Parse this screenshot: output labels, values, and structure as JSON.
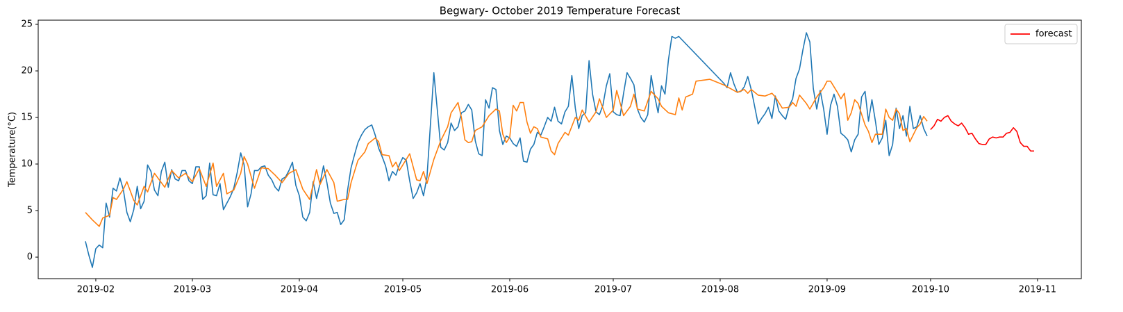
{
  "chart_data": {
    "type": "line",
    "title": "Begwary- October 2019 Temperature Forecast",
    "ylabel": "Temperature(°C)",
    "xlim": [
      15.3,
      317.7
    ],
    "xticks": [
      {
        "value": 32,
        "label": "2019-02"
      },
      {
        "value": 60,
        "label": "2019-03"
      },
      {
        "value": 91,
        "label": "2019-04"
      },
      {
        "value": 121,
        "label": "2019-05"
      },
      {
        "value": 152,
        "label": "2019-06"
      },
      {
        "value": 182,
        "label": "2019-07"
      },
      {
        "value": 213,
        "label": "2019-08"
      },
      {
        "value": 244,
        "label": "2019-09"
      },
      {
        "value": 274,
        "label": "2019-10"
      },
      {
        "value": 305,
        "label": "2019-11"
      }
    ],
    "ylim": [
      -2.31,
      25.45
    ],
    "yticks": [
      0,
      5,
      10,
      15,
      20,
      25
    ],
    "grid": false,
    "legend": "upper right",
    "series": [
      {
        "color": "#1f77b4",
        "x": [
          29,
          30,
          31,
          32,
          33,
          34,
          35,
          36,
          37,
          38,
          39,
          40,
          41,
          42,
          43,
          44,
          45,
          46,
          47,
          48,
          49,
          50,
          51,
          52,
          53,
          54,
          55,
          56,
          57,
          58,
          59,
          60,
          61,
          62,
          63,
          64,
          65,
          66,
          67,
          68,
          69,
          70,
          71,
          72,
          73,
          74,
          75,
          76,
          77,
          78,
          79,
          80,
          81,
          82,
          83,
          84,
          85,
          86,
          87,
          88,
          89,
          90,
          91,
          92,
          93,
          94,
          95,
          96,
          97,
          98,
          99,
          100,
          101,
          102,
          103,
          104,
          105,
          106,
          107,
          108,
          109,
          110,
          111,
          112,
          113,
          114,
          115,
          116,
          117,
          118,
          119,
          120,
          121,
          122,
          123,
          124,
          125,
          126,
          127,
          128,
          130,
          131,
          132,
          133,
          134,
          135,
          136,
          137,
          138,
          139,
          140,
          141,
          142,
          143,
          144,
          145,
          146,
          147,
          148,
          149,
          150,
          151,
          152,
          153,
          154,
          155,
          156,
          157,
          158,
          159,
          160,
          161,
          162,
          163,
          164,
          165,
          166,
          167,
          168,
          169,
          170,
          171,
          172,
          173,
          174,
          175,
          176,
          177,
          178,
          179,
          180,
          181,
          182,
          183,
          184,
          185,
          186,
          187,
          188,
          189,
          190,
          191,
          192,
          193,
          194,
          195,
          196,
          197,
          198,
          199,
          200,
          201,
          214,
          215,
          216,
          217,
          218,
          219,
          220,
          221,
          222,
          223,
          224,
          225,
          226,
          227,
          228,
          229,
          230,
          231,
          232,
          233,
          234,
          235,
          236,
          237,
          238,
          239,
          240,
          241,
          242,
          243,
          244,
          245,
          246,
          247,
          248,
          249,
          250,
          251,
          252,
          253,
          254,
          255,
          256,
          257,
          258,
          259,
          260,
          261,
          262,
          263,
          264,
          265,
          266,
          267,
          268,
          269,
          270,
          271,
          272,
          273
        ],
        "values": [
          1.7,
          0.2,
          -1.1,
          0.9,
          1.3,
          1.0,
          5.8,
          4.3,
          7.4,
          7.1,
          8.5,
          7.2,
          4.8,
          3.8,
          5.1,
          7.6,
          5.2,
          6.0,
          9.9,
          9.2,
          7.2,
          6.6,
          9.2,
          10.2,
          7.5,
          9.4,
          8.4,
          8.2,
          9.3,
          9.3,
          8.2,
          7.9,
          9.7,
          9.7,
          6.2,
          6.6,
          10.1,
          6.7,
          6.6,
          7.9,
          5.1,
          5.8,
          6.5,
          7.4,
          9.1,
          11.2,
          9.9,
          5.4,
          6.8,
          9.3,
          9.3,
          9.7,
          9.8,
          8.8,
          8.3,
          7.5,
          7.1,
          8.4,
          8.6,
          9.3,
          10.2,
          7.7,
          6.6,
          4.3,
          3.9,
          4.8,
          8.1,
          6.3,
          7.9,
          9.8,
          8.0,
          5.8,
          4.7,
          4.8,
          3.5,
          4.0,
          7.2,
          9.6,
          11.0,
          12.3,
          13.1,
          13.7,
          14.0,
          14.2,
          13.1,
          11.7,
          10.8,
          9.8,
          8.2,
          9.2,
          8.8,
          9.9,
          10.7,
          10.4,
          8.2,
          6.3,
          6.9,
          7.9,
          6.6,
          8.6,
          19.8,
          15.8,
          11.8,
          11.5,
          12.3,
          14.4,
          13.6,
          14.0,
          15.5,
          15.7,
          16.4,
          15.8,
          12.5,
          11.1,
          10.9,
          16.9,
          16.0,
          18.2,
          18.0,
          13.6,
          12.1,
          13.0,
          12.8,
          12.2,
          11.9,
          12.8,
          10.3,
          10.2,
          11.6,
          12.1,
          13.4,
          13.1,
          14.0,
          15.0,
          14.6,
          16.1,
          14.6,
          14.3,
          15.6,
          16.2,
          19.5,
          16.0,
          13.8,
          15.2,
          15.5,
          21.1,
          17.5,
          15.6,
          15.3,
          16.3,
          18.4,
          19.7,
          15.6,
          15.3,
          15.2,
          17.6,
          19.8,
          19.2,
          18.5,
          15.9,
          15.0,
          14.5,
          15.3,
          19.5,
          17.3,
          15.5,
          18.4,
          17.5,
          21.2,
          23.7,
          23.5,
          23.7,
          18.7,
          18.2,
          19.8,
          18.6,
          17.7,
          17.8,
          18.3,
          19.4,
          18.0,
          16.2,
          14.3,
          14.9,
          15.4,
          16.1,
          14.9,
          17.3,
          15.7,
          15.2,
          14.8,
          16.2,
          17.0,
          19.2,
          20.2,
          22.3,
          24.1,
          23.1,
          18.1,
          15.9,
          17.9,
          15.9,
          13.2,
          16.3,
          17.5,
          16.2,
          13.3,
          13.0,
          12.6,
          11.3,
          12.6,
          13.2,
          17.2,
          17.8,
          14.6,
          16.9,
          14.6,
          12.1,
          12.8,
          14.7,
          10.9,
          12.1,
          16.0,
          13.8,
          15.2,
          13.0,
          16.2,
          13.8,
          14.0,
          15.2,
          13.8,
          13.0
        ]
      },
      {
        "color": "#ff7f0e",
        "x": [
          29,
          31,
          33,
          34,
          36,
          37,
          38,
          40,
          41,
          43,
          44,
          46,
          47,
          49,
          51,
          52,
          54,
          56,
          58,
          60,
          62,
          64,
          66,
          67,
          69,
          70,
          72,
          74,
          75,
          76,
          78,
          80,
          82,
          84,
          86,
          88,
          90,
          92,
          94,
          96,
          97,
          99,
          101,
          102,
          104,
          105,
          106,
          108,
          110,
          111,
          113,
          114,
          115,
          117,
          118,
          119,
          120,
          122,
          123,
          125,
          126,
          127,
          128,
          130,
          132,
          134,
          135,
          137,
          138,
          139,
          140,
          141,
          142,
          144,
          146,
          148,
          149,
          150,
          151,
          152,
          153,
          154,
          155,
          156,
          157,
          158,
          159,
          160,
          161,
          163,
          164,
          165,
          166,
          168,
          169,
          171,
          172,
          173,
          175,
          177,
          178,
          180,
          182,
          183,
          185,
          187,
          188,
          189,
          191,
          193,
          195,
          196,
          198,
          200,
          201,
          202,
          203,
          205,
          206,
          208,
          210,
          214,
          218,
          220,
          221,
          222,
          224,
          226,
          228,
          229,
          231,
          233,
          234,
          235,
          236,
          238,
          239,
          241,
          243,
          244,
          245,
          247,
          248,
          249,
          250,
          251,
          252,
          253,
          255,
          256,
          257,
          258,
          260,
          261,
          262,
          263,
          264,
          265,
          266,
          267,
          268,
          270,
          271,
          272,
          273
        ],
        "values": [
          4.8,
          4.0,
          3.3,
          4.2,
          4.5,
          6.4,
          6.2,
          7.3,
          8.1,
          6.1,
          5.6,
          7.6,
          7.0,
          9.0,
          8.0,
          7.5,
          9.3,
          8.5,
          9.0,
          8.1,
          9.5,
          7.6,
          10.1,
          7.6,
          9.0,
          6.8,
          7.2,
          9.0,
          10.8,
          10.0,
          7.4,
          9.6,
          9.5,
          8.8,
          8.0,
          9.0,
          9.4,
          7.3,
          6.2,
          9.4,
          7.8,
          9.4,
          8.0,
          6.0,
          6.2,
          6.2,
          8.0,
          10.4,
          11.3,
          12.2,
          12.8,
          12.4,
          11.0,
          10.9,
          9.7,
          10.2,
          9.3,
          10.5,
          11.1,
          8.3,
          8.2,
          9.2,
          7.9,
          10.5,
          12.5,
          14.0,
          15.5,
          16.6,
          15.0,
          12.6,
          12.3,
          12.4,
          13.6,
          14.0,
          15.2,
          15.9,
          15.7,
          13.2,
          12.3,
          12.9,
          16.3,
          15.7,
          16.6,
          16.6,
          14.5,
          13.3,
          14.0,
          13.8,
          12.9,
          12.7,
          11.4,
          11.0,
          12.2,
          13.4,
          13.1,
          15.0,
          14.7,
          15.8,
          14.5,
          15.6,
          17.0,
          15.0,
          15.8,
          17.9,
          15.2,
          16.2,
          17.5,
          15.9,
          15.7,
          17.8,
          17.0,
          16.2,
          15.5,
          15.3,
          17.1,
          15.8,
          17.2,
          17.5,
          18.9,
          19.0,
          19.1,
          18.5,
          17.7,
          18.0,
          17.6,
          18.0,
          17.4,
          17.3,
          17.6,
          17.2,
          16.0,
          16.1,
          16.6,
          16.2,
          17.4,
          16.5,
          15.9,
          17.2,
          18.2,
          18.9,
          18.9,
          17.7,
          17.0,
          17.6,
          14.7,
          15.5,
          16.9,
          16.5,
          14.2,
          13.5,
          12.3,
          13.2,
          13.2,
          15.9,
          15.0,
          14.7,
          15.9,
          15.4,
          13.6,
          13.8,
          12.4,
          13.9,
          14.3,
          15.1,
          14.6
        ]
      },
      {
        "name": "forecast",
        "color": "#ff0000",
        "x": [
          274,
          275,
          276,
          277,
          278,
          279,
          280,
          281,
          282,
          283,
          284,
          285,
          286,
          287,
          288,
          289,
          290,
          291,
          292,
          293,
          294,
          295,
          296,
          297,
          298,
          299,
          300,
          301,
          302,
          303,
          304
        ],
        "values": [
          13.7,
          14.1,
          14.8,
          14.6,
          15.0,
          15.2,
          14.6,
          14.3,
          14.1,
          14.4,
          13.9,
          13.2,
          13.3,
          12.7,
          12.2,
          12.1,
          12.1,
          12.7,
          12.9,
          12.8,
          12.9,
          12.9,
          13.3,
          13.4,
          13.9,
          13.5,
          12.3,
          11.9,
          11.9,
          11.4,
          11.4
        ]
      }
    ]
  }
}
